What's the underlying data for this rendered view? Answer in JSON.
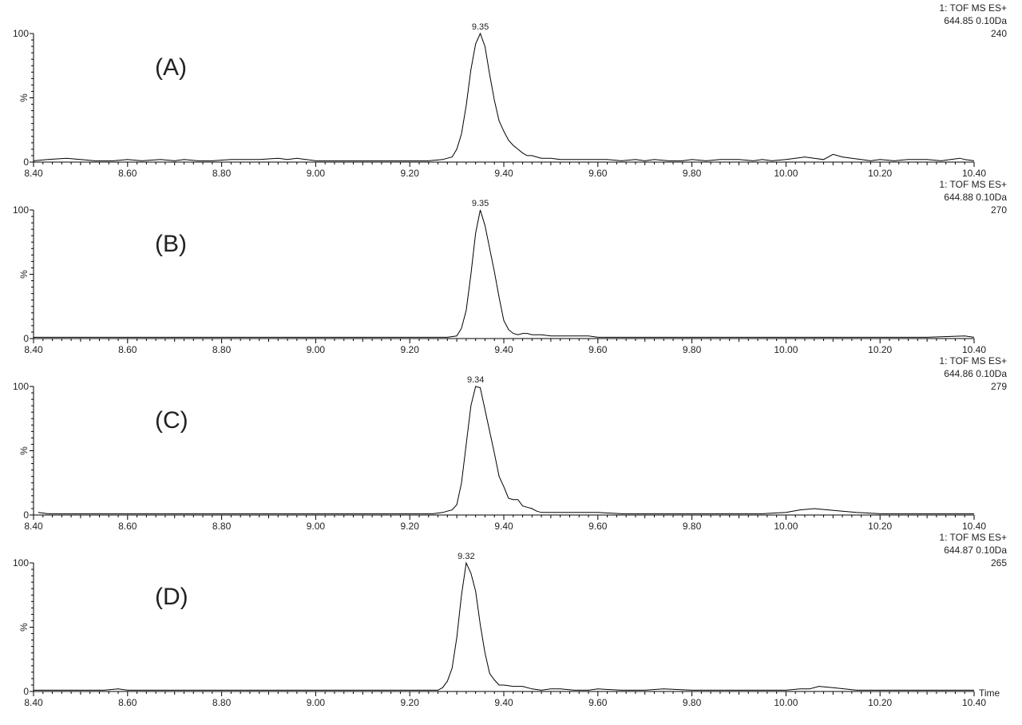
{
  "chart_data": [
    {
      "type": "line",
      "panel_label": "(A)",
      "header": [
        "1: TOF MS ES+",
        "644.85 0.10Da",
        "240"
      ],
      "peak_label": "9.35",
      "ylabel": "%",
      "y_ticks": [
        "0",
        "100"
      ],
      "xlim": [
        8.4,
        10.4
      ],
      "ylim": [
        0,
        100
      ],
      "x_tick_labels": [
        "8.40",
        "8.60",
        "8.80",
        "9.00",
        "9.20",
        "9.40",
        "9.60",
        "9.80",
        "10.00",
        "10.20",
        "10.40"
      ],
      "series": [
        {
          "x": [
            8.4,
            8.43,
            8.47,
            8.5,
            8.53,
            8.57,
            8.6,
            8.63,
            8.67,
            8.7,
            8.72,
            8.75,
            8.78,
            8.82,
            8.85,
            8.88,
            8.92,
            8.94,
            8.96,
            8.98,
            9.0,
            9.05,
            9.1,
            9.15,
            9.2,
            9.24,
            9.27,
            9.29,
            9.3,
            9.31,
            9.32,
            9.33,
            9.34,
            9.35,
            9.36,
            9.37,
            9.38,
            9.39,
            9.4,
            9.41,
            9.42,
            9.43,
            9.44,
            9.45,
            9.46,
            9.47,
            9.48,
            9.5,
            9.52,
            9.55,
            9.58,
            9.6,
            9.62,
            9.65,
            9.68,
            9.7,
            9.72,
            9.75,
            9.78,
            9.8,
            9.83,
            9.86,
            9.9,
            9.93,
            9.95,
            9.97,
            10.0,
            10.02,
            10.04,
            10.06,
            10.08,
            10.1,
            10.12,
            10.14,
            10.16,
            10.18,
            10.2,
            10.23,
            10.26,
            10.3,
            10.33,
            10.35,
            10.37,
            10.38,
            10.4
          ],
          "y": [
            1,
            2,
            3,
            2,
            1,
            1,
            2,
            1,
            2,
            1,
            2,
            1,
            1,
            2,
            2,
            2,
            3,
            2,
            3,
            2,
            1,
            1,
            1,
            1,
            1,
            1,
            2,
            4,
            10,
            22,
            44,
            72,
            92,
            100,
            90,
            68,
            48,
            32,
            24,
            17,
            13,
            10,
            7,
            5,
            5,
            4,
            3,
            3,
            2,
            2,
            2,
            2,
            2,
            1,
            2,
            1,
            2,
            1,
            1,
            2,
            1,
            2,
            2,
            1,
            2,
            1,
            2,
            3,
            4,
            3,
            2,
            6,
            4,
            3,
            2,
            1,
            2,
            1,
            2,
            2,
            1,
            2,
            3,
            2,
            1
          ]
        }
      ]
    },
    {
      "type": "line",
      "panel_label": "(B)",
      "header": [
        "1: TOF MS ES+",
        "644.88 0.10Da",
        "270"
      ],
      "peak_label": "9.35",
      "ylabel": "%",
      "y_ticks": [
        "0",
        "100"
      ],
      "xlim": [
        8.4,
        10.4
      ],
      "ylim": [
        0,
        100
      ],
      "x_tick_labels": [
        "8.40",
        "8.60",
        "8.80",
        "9.00",
        "9.20",
        "9.40",
        "9.60",
        "9.80",
        "10.00",
        "10.20",
        "10.40"
      ],
      "series": [
        {
          "x": [
            8.4,
            8.45,
            8.5,
            8.55,
            8.6,
            8.65,
            8.7,
            8.75,
            8.8,
            8.85,
            8.9,
            8.95,
            9.0,
            9.05,
            9.1,
            9.15,
            9.2,
            9.25,
            9.28,
            9.3,
            9.31,
            9.32,
            9.33,
            9.34,
            9.35,
            9.36,
            9.37,
            9.38,
            9.39,
            9.4,
            9.41,
            9.42,
            9.43,
            9.44,
            9.45,
            9.46,
            9.48,
            9.5,
            9.52,
            9.55,
            9.58,
            9.6,
            9.65,
            9.7,
            9.8,
            9.9,
            10.0,
            10.1,
            10.2,
            10.3,
            10.38,
            10.4
          ],
          "y": [
            1,
            1,
            1,
            1,
            1,
            1,
            1,
            1,
            1,
            1,
            1,
            1,
            1,
            1,
            1,
            1,
            1,
            1,
            1,
            2,
            8,
            22,
            50,
            82,
            100,
            88,
            70,
            52,
            32,
            14,
            7,
            4,
            3,
            4,
            4,
            3,
            3,
            2,
            2,
            2,
            2,
            1,
            1,
            1,
            1,
            1,
            1,
            1,
            1,
            1,
            2,
            1
          ]
        }
      ]
    },
    {
      "type": "line",
      "panel_label": "(C)",
      "header": [
        "1: TOF MS ES+",
        "644.86 0.10Da",
        "279"
      ],
      "peak_label": "9.34",
      "ylabel": "%",
      "y_ticks": [
        "0",
        "100"
      ],
      "xlim": [
        8.4,
        10.4
      ],
      "ylim": [
        0,
        100
      ],
      "x_tick_labels": [
        "8.40",
        "8.60",
        "8.80",
        "9.00",
        "9.20",
        "9.40",
        "9.60",
        "9.80",
        "10.00",
        "10.20",
        "10.40"
      ],
      "series": [
        {
          "x": [
            8.41,
            8.43,
            8.45,
            8.5,
            8.55,
            8.6,
            8.65,
            8.7,
            8.75,
            8.8,
            8.85,
            8.9,
            8.95,
            9.0,
            9.05,
            9.1,
            9.15,
            9.2,
            9.25,
            9.27,
            9.29,
            9.3,
            9.31,
            9.32,
            9.33,
            9.34,
            9.35,
            9.36,
            9.37,
            9.38,
            9.39,
            9.4,
            9.41,
            9.42,
            9.43,
            9.44,
            9.45,
            9.46,
            9.47,
            9.48,
            9.5,
            9.55,
            9.6,
            9.65,
            9.7,
            9.8,
            9.9,
            9.95,
            10.0,
            10.03,
            10.06,
            10.09,
            10.12,
            10.15,
            10.2,
            10.25,
            10.3,
            10.35,
            10.4
          ],
          "y": [
            2,
            1,
            1,
            1,
            1,
            1,
            1,
            1,
            1,
            1,
            1,
            1,
            1,
            1,
            1,
            1,
            1,
            1,
            1,
            2,
            4,
            8,
            25,
            55,
            85,
            100,
            99,
            82,
            65,
            48,
            30,
            22,
            13,
            12,
            12,
            7,
            6,
            5,
            3,
            2,
            2,
            2,
            2,
            1,
            1,
            1,
            1,
            1,
            2,
            4,
            5,
            4,
            3,
            2,
            1,
            1,
            1,
            1,
            1
          ]
        }
      ]
    },
    {
      "type": "line",
      "panel_label": "(D)",
      "header": [
        "1: TOF MS ES+",
        "644.87 0.10Da",
        "265"
      ],
      "peak_label": "9.32",
      "ylabel": "%",
      "y_ticks": [
        "0",
        "100"
      ],
      "xlabel": "Time",
      "xlim": [
        8.4,
        10.4
      ],
      "ylim": [
        0,
        100
      ],
      "x_tick_labels": [
        "8.40",
        "8.60",
        "8.80",
        "9.00",
        "9.20",
        "9.40",
        "9.60",
        "9.80",
        "10.00",
        "10.20",
        "10.40"
      ],
      "series": [
        {
          "x": [
            8.4,
            8.45,
            8.5,
            8.55,
            8.58,
            8.6,
            8.65,
            8.7,
            8.75,
            8.8,
            8.85,
            8.9,
            8.95,
            9.0,
            9.05,
            9.1,
            9.15,
            9.2,
            9.24,
            9.26,
            9.27,
            9.28,
            9.29,
            9.3,
            9.31,
            9.32,
            9.33,
            9.34,
            9.35,
            9.36,
            9.37,
            9.38,
            9.39,
            9.4,
            9.42,
            9.44,
            9.46,
            9.48,
            9.5,
            9.52,
            9.55,
            9.58,
            9.6,
            9.65,
            9.7,
            9.74,
            9.8,
            9.9,
            9.95,
            10.0,
            10.03,
            10.05,
            10.07,
            10.1,
            10.15,
            10.2,
            10.3,
            10.4
          ],
          "y": [
            1,
            1,
            1,
            1,
            2,
            1,
            1,
            1,
            1,
            1,
            1,
            1,
            1,
            1,
            1,
            1,
            1,
            1,
            1,
            1,
            3,
            8,
            18,
            42,
            75,
            100,
            92,
            78,
            52,
            30,
            14,
            9,
            5,
            5,
            4,
            4,
            2,
            1,
            2,
            2,
            1,
            1,
            2,
            1,
            1,
            2,
            1,
            1,
            1,
            1,
            2,
            2,
            4,
            3,
            1,
            1,
            1,
            1
          ]
        }
      ]
    }
  ]
}
